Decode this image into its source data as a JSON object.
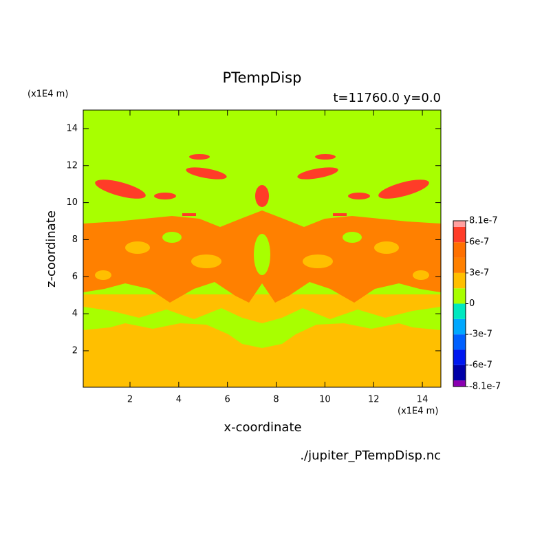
{
  "chart_data": {
    "type": "contour",
    "title": "PTempDisp",
    "subtitle": "t=11760.0 y=0.0",
    "x_label": "x-coordinate",
    "y_label": "z-coordinate",
    "x_unit": "(x1E4 m)",
    "y_unit": "(x1E4 m)",
    "source": "./jupiter_PTempDisp.nc",
    "xlim": [
      0.08,
      14.76
    ],
    "xticks": [
      2,
      4,
      6,
      8,
      10,
      12,
      14
    ],
    "ylim": [
      0.03,
      15.0
    ],
    "yticks": [
      2,
      4,
      6,
      8,
      10,
      12,
      14
    ],
    "colorbar": {
      "levels": [
        -8.1e-07,
        -7.5e-07,
        -6e-07,
        -4.5e-07,
        -3e-07,
        -1.5e-07,
        0,
        1.5e-07,
        3e-07,
        4.5e-07,
        6e-07,
        7.5e-07,
        8.1e-07
      ],
      "colors": [
        "#8a00b0",
        "#0000a8",
        "#0018f0",
        "#0060ff",
        "#00a8ff",
        "#00e8c0",
        "#a8ff00",
        "#ffbf00",
        "#ff8000",
        "#ff7000",
        "#ff3c28",
        "#ffa0a0"
      ],
      "ticks": [
        -8.1e-07,
        -6e-07,
        -3e-07,
        0,
        3e-07,
        6e-07,
        8.1e-07
      ]
    }
  }
}
